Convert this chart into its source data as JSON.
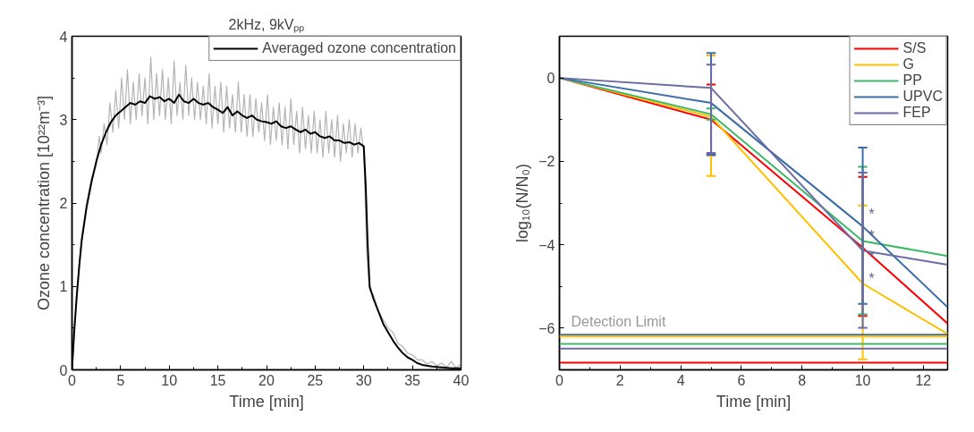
{
  "chart_data": [
    {
      "type": "line",
      "title": "2kHz, 9kVₚₚ",
      "xlabel": "Time [min]",
      "ylabel": "Ozone concentration [10²²m⁻³]",
      "xlim": [
        0,
        40
      ],
      "ylim": [
        0,
        4
      ],
      "xticks": [
        0,
        5,
        10,
        15,
        20,
        25,
        30,
        35,
        40
      ],
      "yticks": [
        0,
        1,
        2,
        3,
        4
      ],
      "grid": false,
      "legend": "top right",
      "series": [
        {
          "color": "#b4b4b4",
          "x": [
            0,
            0.5,
            1,
            1.5,
            2,
            2.5,
            2.8,
            3,
            3.3,
            3.6,
            3.9,
            4.2,
            4.5,
            4.8,
            5.1,
            5.4,
            5.7,
            6,
            6.3,
            6.6,
            6.9,
            7.2,
            7.5,
            7.8,
            8.1,
            8.4,
            8.7,
            9,
            9.3,
            9.6,
            9.9,
            10.2,
            10.5,
            10.8,
            11.1,
            11.4,
            11.7,
            12,
            12.3,
            12.6,
            12.9,
            13.2,
            13.5,
            13.8,
            14.1,
            14.4,
            14.7,
            15,
            15.3,
            15.6,
            15.9,
            16.2,
            16.5,
            16.8,
            17.1,
            17.4,
            17.7,
            18,
            18.3,
            18.6,
            18.9,
            19.2,
            19.5,
            19.8,
            20.1,
            20.4,
            20.7,
            21,
            21.3,
            21.6,
            21.9,
            22.2,
            22.5,
            22.8,
            23.1,
            23.4,
            23.7,
            24,
            24.3,
            24.6,
            24.9,
            25.2,
            25.5,
            25.8,
            26.1,
            26.4,
            26.7,
            27,
            27.3,
            27.6,
            27.9,
            28.2,
            28.5,
            28.8,
            29.1,
            29.4,
            29.7,
            30,
            30.3,
            30.6,
            31,
            31.5,
            32,
            32.5,
            33,
            33.5,
            34,
            34.5,
            35,
            35.5,
            36,
            36.5,
            37,
            37.5,
            38,
            38.5,
            39,
            39.5,
            40
          ],
          "values": [
            0,
            0.95,
            1.6,
            2.0,
            2.3,
            2.45,
            2.8,
            2.6,
            2.95,
            2.7,
            3.2,
            2.85,
            3.35,
            2.9,
            3.5,
            3.0,
            3.6,
            2.95,
            3.45,
            3.0,
            3.55,
            3.05,
            3.5,
            2.95,
            3.75,
            3.0,
            3.55,
            3.05,
            3.6,
            3.0,
            3.5,
            2.95,
            3.7,
            3.05,
            3.45,
            3.0,
            3.65,
            3.05,
            3.5,
            3.0,
            3.45,
            3.0,
            3.4,
            2.95,
            3.55,
            2.9,
            3.4,
            2.95,
            3.45,
            2.85,
            3.4,
            2.9,
            3.3,
            2.85,
            3.45,
            2.85,
            3.3,
            2.8,
            3.3,
            2.8,
            3.25,
            2.85,
            3.2,
            2.75,
            3.3,
            2.7,
            3.15,
            2.75,
            3.2,
            2.7,
            3.15,
            2.65,
            3.25,
            2.7,
            3.1,
            2.6,
            3.15,
            2.65,
            3.05,
            2.6,
            3.1,
            2.6,
            3.0,
            2.55,
            3.1,
            2.6,
            3.0,
            2.55,
            3.05,
            2.5,
            2.95,
            2.6,
            3.0,
            2.55,
            2.95,
            2.6,
            2.9,
            2.6,
            1.4,
            0.95,
            0.9,
            0.7,
            0.6,
            0.5,
            0.45,
            0.32,
            0.28,
            0.2,
            0.18,
            0.12,
            0.12,
            0.07,
            0.1,
            0.05,
            0.08,
            0.03,
            0.1,
            0.02,
            0.08
          ]
        },
        {
          "name": "Averaged ozone concentration",
          "color": "#000000",
          "x": [
            0,
            0.25,
            0.5,
            0.75,
            1,
            1.5,
            2,
            2.5,
            3,
            3.5,
            4,
            4.5,
            5,
            5.5,
            6,
            6.5,
            7,
            7.5,
            8,
            8.5,
            9,
            9.5,
            10,
            10.5,
            11,
            11.5,
            12,
            12.5,
            13,
            13.5,
            14,
            14.5,
            15,
            15.5,
            16,
            16.5,
            17,
            17.5,
            18,
            18.5,
            19,
            19.5,
            20,
            20.5,
            21,
            21.5,
            22,
            22.5,
            23,
            23.5,
            24,
            24.5,
            25,
            25.5,
            26,
            26.5,
            27,
            27.5,
            28,
            28.5,
            29,
            29.5,
            30,
            30.2,
            30.4,
            30.6,
            31,
            31.5,
            32,
            32.5,
            33,
            33.5,
            34,
            34.5,
            35,
            35.5,
            36,
            37,
            38,
            39,
            40
          ],
          "values": [
            0,
            0.5,
            0.9,
            1.25,
            1.55,
            1.95,
            2.25,
            2.5,
            2.7,
            2.85,
            2.97,
            3.05,
            3.1,
            3.15,
            3.2,
            3.18,
            3.22,
            3.2,
            3.28,
            3.25,
            3.27,
            3.22,
            3.25,
            3.2,
            3.3,
            3.22,
            3.2,
            3.25,
            3.2,
            3.18,
            3.2,
            3.15,
            3.12,
            3.08,
            3.15,
            3.05,
            3.1,
            3.05,
            3.02,
            3.05,
            3.0,
            2.98,
            2.97,
            2.95,
            2.98,
            2.92,
            2.9,
            2.92,
            2.88,
            2.85,
            2.88,
            2.83,
            2.85,
            2.8,
            2.78,
            2.8,
            2.75,
            2.75,
            2.72,
            2.73,
            2.7,
            2.72,
            2.68,
            2.2,
            1.5,
            1.0,
            0.85,
            0.7,
            0.55,
            0.45,
            0.35,
            0.27,
            0.2,
            0.15,
            0.12,
            0.08,
            0.06,
            0.04,
            0.03,
            0.02,
            0.02
          ]
        }
      ]
    },
    {
      "type": "line",
      "xlabel": "Time [min]",
      "ylabel": "log₁₀(N/N₀)",
      "xlim": [
        0,
        12.8
      ],
      "ylim": [
        -7,
        1
      ],
      "xticks": [
        0,
        2,
        4,
        6,
        8,
        10,
        12
      ],
      "yticks": [
        -6,
        -4,
        -2,
        0
      ],
      "grid": false,
      "legend": "top right",
      "series": [
        {
          "name": "S/S",
          "color": "#ff0000",
          "x": [
            0,
            5,
            10,
            12.8
          ],
          "values": [
            0,
            -1.0,
            -4.07,
            -5.89
          ],
          "errors": [
            null,
            [
              -1.85,
              -0.16
            ],
            [
              -5.71,
              -2.37
            ],
            null
          ]
        },
        {
          "name": "G",
          "color": "#ffc000",
          "x": [
            0,
            5,
            10,
            12.8
          ],
          "values": [
            0,
            -0.93,
            -4.93,
            -6.14
          ],
          "errors": [
            null,
            [
              -2.35,
              0.54
            ],
            [
              -6.75,
              -3.06
            ],
            null
          ]
        },
        {
          "name": "PP",
          "color": "#3cba6a",
          "x": [
            0,
            5,
            10,
            12.8
          ],
          "values": [
            0,
            -0.87,
            -3.91,
            -4.27
          ],
          "errors": [
            null,
            [
              -1.0,
              -0.73
            ],
            [
              -5.67,
              -2.13
            ],
            null
          ]
        },
        {
          "name": "UPVC",
          "color": "#3b6ea8",
          "x": [
            0,
            5,
            10,
            12.8
          ],
          "values": [
            0,
            -0.6,
            -3.56,
            -5.5
          ],
          "errors": [
            null,
            [
              -1.84,
              0.6
            ],
            [
              -5.42,
              -1.67
            ],
            null
          ]
        },
        {
          "name": "FEP",
          "color": "#6b6ba6",
          "x": [
            0,
            5,
            10,
            12.8
          ],
          "values": [
            0,
            -0.24,
            -4.14,
            -4.48
          ],
          "errors": [
            null,
            [
              -1.8,
              0.32
            ],
            [
              -5.99,
              -2.27
            ],
            null
          ]
        }
      ],
      "ref_lines": [
        {
          "axis": "y",
          "value": -6.16,
          "color": "#3b6ea8",
          "label": "Detection Limit"
        },
        {
          "axis": "y",
          "value": -6.2,
          "color": "#ffc000"
        },
        {
          "axis": "y",
          "value": -6.38,
          "color": "#3cba6a"
        },
        {
          "axis": "y",
          "value": -6.49,
          "color": "#6b6ba6"
        },
        {
          "axis": "y",
          "value": -6.83,
          "color": "#ff0000"
        }
      ],
      "annotations": [
        "*",
        "*",
        "*",
        "*"
      ]
    }
  ]
}
